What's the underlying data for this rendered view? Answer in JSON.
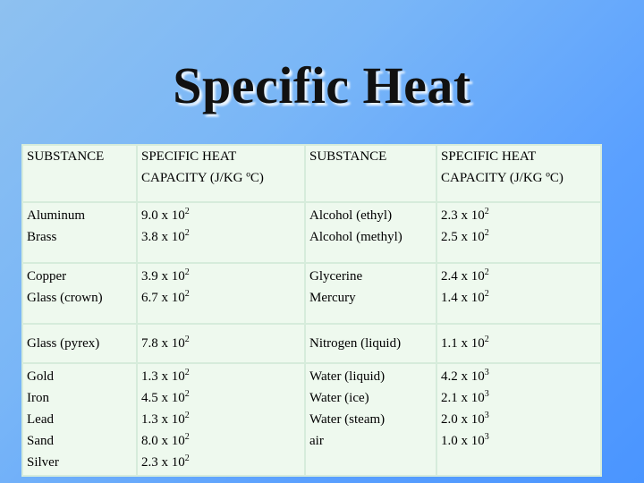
{
  "title": "Specific Heat",
  "table": {
    "headers": [
      [
        "SUBSTANCE"
      ],
      [
        "SPECIFIC HEAT",
        "CAPACITY (J/KG ºC)"
      ],
      [
        "SUBSTANCE"
      ],
      [
        "SPECIFIC HEAT",
        "CAPACITY (J/KG ºC)"
      ]
    ],
    "rows": [
      {
        "left_substances": [
          "Aluminum",
          "Brass"
        ],
        "left_values": [
          {
            "mant": "9.0 x 10",
            "exp": "2"
          },
          {
            "mant": "3.8 x 10",
            "exp": "2"
          }
        ],
        "right_substances": [
          "Alcohol (ethyl)",
          "Alcohol (methyl)"
        ],
        "right_values": [
          {
            "mant": "2.3 x 10",
            "exp": "2"
          },
          {
            "mant": "2.5 x 10",
            "exp": "2"
          }
        ]
      },
      {
        "left_substances": [
          "Copper",
          "Glass (crown)"
        ],
        "left_values": [
          {
            "mant": "3.9 x 10",
            "exp": "2"
          },
          {
            "mant": "6.7 x 10",
            "exp": "2"
          }
        ],
        "right_substances": [
          "Glycerine",
          "Mercury"
        ],
        "right_values": [
          {
            "mant": "2.4 x 10",
            "exp": "2"
          },
          {
            "mant": "1.4 x 10",
            "exp": "2"
          }
        ]
      },
      {
        "left_substances": [
          "Glass (pyrex)"
        ],
        "left_values": [
          {
            "mant": "7.8 x 10",
            "exp": "2"
          }
        ],
        "right_substances": [
          "Nitrogen (liquid)"
        ],
        "right_values": [
          {
            "mant": "1.1 x 10",
            "exp": "2"
          }
        ]
      },
      {
        "left_substances": [
          "Gold",
          "Iron",
          "Lead",
          "Sand",
          "Silver"
        ],
        "left_values": [
          {
            "mant": "1.3 x 10",
            "exp": "2"
          },
          {
            "mant": "4.5 x 10",
            "exp": "2"
          },
          {
            "mant": "1.3 x 10",
            "exp": "2"
          },
          {
            "mant": "8.0 x 10",
            "exp": "2"
          },
          {
            "mant": "2.3 x 10",
            "exp": "2"
          }
        ],
        "right_substances": [
          "Water (liquid)",
          "Water (ice)",
          "Water (steam)",
          "air"
        ],
        "right_values": [
          {
            "mant": "4.2 x 10",
            "exp": "3"
          },
          {
            "mant": "2.1 x 10",
            "exp": "3"
          },
          {
            "mant": "2.0 x 10",
            "exp": "3"
          },
          {
            "mant": "1.0 x 10",
            "exp": "3"
          }
        ]
      }
    ]
  }
}
